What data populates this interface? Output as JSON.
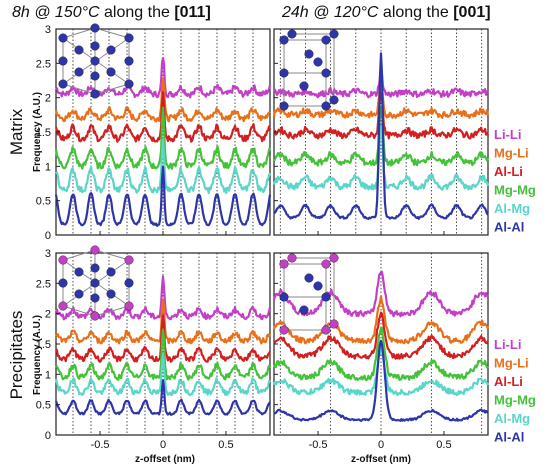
{
  "figure": {
    "column_titles": [
      {
        "prefix": "8h @ 150°C",
        "mid": " along the ",
        "dir": "[011]"
      },
      {
        "prefix": "24h @ 120°C",
        "mid": " along the ",
        "dir": "[001]"
      }
    ],
    "row_titles": [
      "Matrix",
      "Precipitates"
    ],
    "ylabel": "Frequency (A.U.)",
    "xlabel": "z-offset (nm)",
    "legend": [
      {
        "label": "Li-Li",
        "color": "#c23fc6"
      },
      {
        "label": "Mg-Li",
        "color": "#e8701a"
      },
      {
        "label": "Al-Li",
        "color": "#d12020"
      },
      {
        "label": "Mg-Mg",
        "color": "#44c23a"
      },
      {
        "label": "Al-Mg",
        "color": "#5ad6c8"
      },
      {
        "label": "Al-Al",
        "color": "#2d35a8"
      }
    ],
    "icons": [
      "crystal-structure-011-icon",
      "crystal-structure-001-icon"
    ]
  },
  "chart_data": [
    {
      "type": "line",
      "panel": "Matrix, 8h @ 150°C along the [011]",
      "xlabel": "z-offset (nm)",
      "ylabel": "Frequency (A.U.)",
      "xlim": [
        -0.85,
        0.85
      ],
      "ylim": [
        0,
        3
      ],
      "xticks": [
        -0.5,
        0,
        0.5
      ],
      "yticks": [
        0,
        0.5,
        1,
        1.5,
        2,
        2.5,
        3
      ],
      "peak_spacing_nm": 0.143,
      "series": [
        {
          "name": "Li-Li",
          "baseline": 2.05,
          "center_peak": 2.6,
          "side_peak_height": 0.1
        },
        {
          "name": "Mg-Li",
          "baseline": 1.7,
          "center_peak": 2.3,
          "side_peak_height": 0.12
        },
        {
          "name": "Al-Li",
          "baseline": 1.4,
          "center_peak": 2.05,
          "side_peak_height": 0.18
        },
        {
          "name": "Mg-Mg",
          "baseline": 1.0,
          "center_peak": 1.85,
          "side_peak_height": 0.25
        },
        {
          "name": "Al-Mg",
          "baseline": 0.65,
          "center_peak": 1.35,
          "side_peak_height": 0.3
        },
        {
          "name": "Al-Al",
          "baseline": 0.15,
          "center_peak": 1.0,
          "side_peak_height": 0.45
        }
      ]
    },
    {
      "type": "line",
      "panel": "Matrix, 24h @ 120°C along the [001]",
      "xlabel": "z-offset (nm)",
      "ylabel": "Frequency (A.U.)",
      "xlim": [
        -0.85,
        0.85
      ],
      "ylim": [
        0,
        3
      ],
      "xticks": [
        -0.5,
        0,
        0.5
      ],
      "yticks": [
        0,
        0.5,
        1,
        1.5,
        2,
        2.5,
        3
      ],
      "peak_spacing_nm": 0.2,
      "series": [
        {
          "name": "Li-Li",
          "baseline": 2.05,
          "center_peak": 2.35,
          "side_peak_height": 0.05
        },
        {
          "name": "Mg-Li",
          "baseline": 1.75,
          "center_peak": 2.2,
          "side_peak_height": 0.06
        },
        {
          "name": "Al-Li",
          "baseline": 1.45,
          "center_peak": 2.1,
          "side_peak_height": 0.08
        },
        {
          "name": "Mg-Mg",
          "baseline": 1.05,
          "center_peak": 1.9,
          "side_peak_height": 0.12
        },
        {
          "name": "Al-Mg",
          "baseline": 0.7,
          "center_peak": 1.6,
          "side_peak_height": 0.14
        },
        {
          "name": "Al-Al",
          "baseline": 0.25,
          "center_peak": 2.65,
          "side_peak_height": 0.18
        }
      ]
    },
    {
      "type": "line",
      "panel": "Precipitates, 8h @ 150°C along the [011]",
      "xlabel": "z-offset (nm)",
      "ylabel": "Frequency (A.U.)",
      "xlim": [
        -0.85,
        0.85
      ],
      "ylim": [
        0,
        3
      ],
      "xticks": [
        -0.5,
        0,
        0.5
      ],
      "yticks": [
        0,
        0.5,
        1,
        1.5,
        2,
        2.5,
        3
      ],
      "peak_spacing_nm": 0.143,
      "series": [
        {
          "name": "Li-Li",
          "baseline": 1.95,
          "center_peak": 2.6,
          "side_peak_height": 0.12
        },
        {
          "name": "Mg-Li",
          "baseline": 1.55,
          "center_peak": 2.25,
          "side_peak_height": 0.14
        },
        {
          "name": "Al-Li",
          "baseline": 1.25,
          "center_peak": 2.0,
          "side_peak_height": 0.16
        },
        {
          "name": "Mg-Mg",
          "baseline": 0.95,
          "center_peak": 1.75,
          "side_peak_height": 0.2
        },
        {
          "name": "Al-Mg",
          "baseline": 0.7,
          "center_peak": 1.3,
          "side_peak_height": 0.2
        },
        {
          "name": "Al-Al",
          "baseline": 0.35,
          "center_peak": 0.9,
          "side_peak_height": 0.22
        }
      ]
    },
    {
      "type": "line",
      "panel": "Precipitates, 24h @ 120°C along the [001]",
      "xlabel": "z-offset (nm)",
      "ylabel": "Frequency (A.U.)",
      "xlim": [
        -0.85,
        0.85
      ],
      "ylim": [
        0,
        3
      ],
      "xticks": [
        -0.5,
        0,
        0.5
      ],
      "yticks": [
        0,
        0.5,
        1,
        1.5,
        2,
        2.5,
        3
      ],
      "peak_spacing_nm": 0.4,
      "series": [
        {
          "name": "Li-Li",
          "baseline": 2.0,
          "center_peak": 2.7,
          "side_peak_height": 0.35
        },
        {
          "name": "Mg-Li",
          "baseline": 1.55,
          "center_peak": 2.25,
          "side_peak_height": 0.3
        },
        {
          "name": "Al-Li",
          "baseline": 1.3,
          "center_peak": 2.0,
          "side_peak_height": 0.3
        },
        {
          "name": "Mg-Mg",
          "baseline": 0.95,
          "center_peak": 1.75,
          "side_peak_height": 0.25
        },
        {
          "name": "Al-Mg",
          "baseline": 0.7,
          "center_peak": 1.4,
          "side_peak_height": 0.2
        },
        {
          "name": "Al-Al",
          "baseline": 0.25,
          "center_peak": 1.55,
          "side_peak_height": 0.15
        }
      ]
    }
  ]
}
